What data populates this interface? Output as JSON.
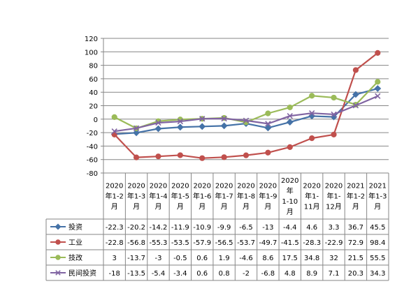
{
  "chart_data": {
    "type": "line",
    "title": "",
    "xlabel": "",
    "ylabel": "",
    "ylim": [
      -80,
      120
    ],
    "yticks": [
      120,
      100,
      80,
      60,
      40,
      20,
      0,
      -20,
      -40,
      -60,
      -80
    ],
    "grid": "horizontal",
    "legend": "data-table-left",
    "categories": [
      [
        "2020",
        "年1-2",
        "月"
      ],
      [
        "2020",
        "年1-3",
        "月"
      ],
      [
        "2020",
        "年1-4",
        "月"
      ],
      [
        "2020",
        "年1-5",
        "月"
      ],
      [
        "2020",
        "年1-6",
        "月"
      ],
      [
        "2020",
        "年1-7",
        "月"
      ],
      [
        "2020",
        "年1-8",
        "月"
      ],
      [
        "2020",
        "年1-9",
        "月"
      ],
      [
        "2020",
        "年",
        "1-10",
        "月"
      ],
      [
        "2020",
        "年1-",
        "11月"
      ],
      [
        "2020",
        "年1-",
        "12月"
      ],
      [
        "2021",
        "年1-2",
        "月"
      ],
      [
        "2021",
        "年1-3",
        "月"
      ]
    ],
    "series": [
      {
        "name": "投资",
        "color": "#4572A7",
        "marker": "diamond",
        "values": [
          -22.3,
          -20.2,
          -14.2,
          -11.9,
          -10.9,
          -9.9,
          -6.5,
          -13,
          -4.4,
          4.6,
          3.3,
          36.7,
          45.5
        ]
      },
      {
        "name": "工业",
        "color": "#C0504D",
        "marker": "circle",
        "values": [
          -22.8,
          -56.8,
          -55.3,
          -53.5,
          -57.9,
          -56.5,
          -53.7,
          -49.7,
          -41.5,
          -28.3,
          -22.9,
          72.9,
          98.4
        ]
      },
      {
        "name": "技改",
        "color": "#9BBB59",
        "marker": "circle",
        "values": [
          3,
          -13.7,
          -3,
          -0.5,
          0.6,
          1.9,
          -4.6,
          8.6,
          17.5,
          34.8,
          32,
          21.5,
          55.5
        ]
      },
      {
        "name": "民间投资",
        "color": "#8064A2",
        "marker": "x",
        "values": [
          -18,
          -13.5,
          -5.4,
          -3.4,
          0.6,
          0.8,
          -2,
          -6.8,
          4.8,
          8.9,
          7.1,
          20.3,
          34.3
        ]
      }
    ]
  }
}
